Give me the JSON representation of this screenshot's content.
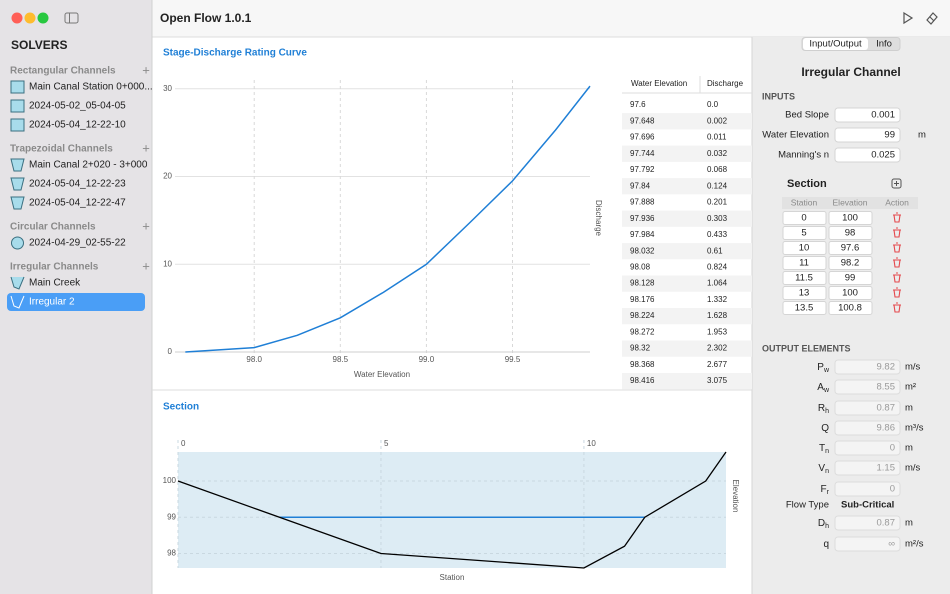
{
  "app": {
    "title": "Open Flow 1.0.1"
  },
  "sidebar": {
    "heading": "SOLVERS",
    "groups": [
      {
        "name": "Rectangular Channels",
        "items": [
          "Main Canal Station 0+000...",
          "2024-05-02_05-04-05",
          "2024-05-04_12-22-10"
        ]
      },
      {
        "name": "Trapezoidal Channels",
        "items": [
          "Main Canal 2+020 - 3+000",
          "2024-05-04_12-22-23",
          "2024-05-04_12-22-47"
        ]
      },
      {
        "name": "Circular Channels",
        "items": [
          "2024-04-29_02-55-22"
        ]
      },
      {
        "name": "Irregular Channels",
        "items": [
          "Main Creek",
          "Irregular 2"
        ]
      }
    ]
  },
  "chart_data": [
    {
      "type": "line",
      "title": "Stage-Discharge Rating Curve",
      "x_label": "Water Elevation",
      "y_label": "Discharge",
      "x": [
        97.6,
        98.0,
        98.25,
        98.5,
        98.75,
        99.0,
        99.25,
        99.5,
        99.75,
        99.95
      ],
      "values": [
        0,
        0.5,
        1.9,
        3.9,
        6.8,
        10,
        14.7,
        19.5,
        25.3,
        30.3
      ],
      "color": "#1f7fd6",
      "xlim": [
        97.54,
        99.95
      ],
      "ylim": [
        0,
        31
      ],
      "xticks": [
        {
          "value": 98,
          "label": "98.0"
        },
        98.5,
        {
          "value": 99,
          "label": "99.0"
        },
        99.5
      ],
      "yticks": [
        0,
        10,
        20,
        30
      ],
      "grid": true
    },
    {
      "type": "section",
      "title": "Section",
      "x_label": "Station",
      "y_label": "Elevation",
      "x": [
        0,
        5,
        10,
        11,
        11.5,
        13,
        13.5
      ],
      "values": [
        100,
        98,
        97.6,
        98.2,
        99,
        100,
        100.8
      ],
      "color": "#000000",
      "water_color": "#1f7fd6",
      "fill": "#ddecf4",
      "xlim": [
        0,
        13.5
      ],
      "ylim": [
        97.6,
        100.8
      ],
      "xticks": [
        0,
        5,
        10
      ],
      "yticks": [
        98,
        99,
        100
      ],
      "grid": true
    }
  ],
  "table": {
    "columns": [
      "Water Elevation",
      "Discharge"
    ],
    "rows": [
      [
        "97.6",
        "0.0"
      ],
      [
        "97.648",
        "0.002"
      ],
      [
        "97.696",
        "0.011"
      ],
      [
        "97.744",
        "0.032"
      ],
      [
        "97.792",
        "0.068"
      ],
      [
        "97.84",
        "0.124"
      ],
      [
        "97.888",
        "0.201"
      ],
      [
        "97.936",
        "0.303"
      ],
      [
        "97.984",
        "0.433"
      ],
      [
        "98.032",
        "0.61"
      ],
      [
        "98.08",
        "0.824"
      ],
      [
        "98.128",
        "1.064"
      ],
      [
        "98.176",
        "1.332"
      ],
      [
        "98.224",
        "1.628"
      ],
      [
        "98.272",
        "1.953"
      ],
      [
        "98.32",
        "2.302"
      ],
      [
        "98.368",
        "2.677"
      ],
      [
        "98.416",
        "3.075"
      ]
    ]
  },
  "panel": {
    "tabs": [
      "Input/Output",
      "Info"
    ],
    "title": "Irregular Channel",
    "inputs_heading": "INPUTS",
    "inputs": [
      {
        "label": "Bed Slope",
        "value": 0.001
      },
      {
        "label": "Water Elevation",
        "value": 99,
        "unit": "m"
      },
      {
        "label": "Manning's n",
        "value": 0.025
      }
    ],
    "section_heading": "Section",
    "section_columns": [
      "Station",
      "Elevation",
      "Action"
    ],
    "outputs_heading": "OUTPUT ELEMENTS",
    "outputs": [
      {
        "symbol": "P",
        "sub": "w",
        "value": 9.82,
        "unit": "m/s"
      },
      {
        "symbol": "A",
        "sub": "w",
        "value": 8.55,
        "unit": "m²"
      },
      {
        "symbol": "R",
        "sub": "h",
        "value": 0.87,
        "unit": "m"
      },
      {
        "symbol": "Q",
        "value": 9.86,
        "unit": "m³/s"
      },
      {
        "symbol": "T",
        "sub": "n",
        "value": 0,
        "unit": "m"
      },
      {
        "symbol": "V",
        "sub": "n",
        "value": 1.15,
        "unit": "m/s"
      },
      {
        "symbol": "F",
        "sub": "r",
        "value": 0
      },
      {
        "label": "Flow Type",
        "value": "Sub-Critical"
      },
      {
        "symbol": "D",
        "sub": "h",
        "value": 0.87,
        "unit": "m"
      },
      {
        "symbol": "q",
        "value": "∞",
        "unit": "m²/s"
      }
    ]
  }
}
